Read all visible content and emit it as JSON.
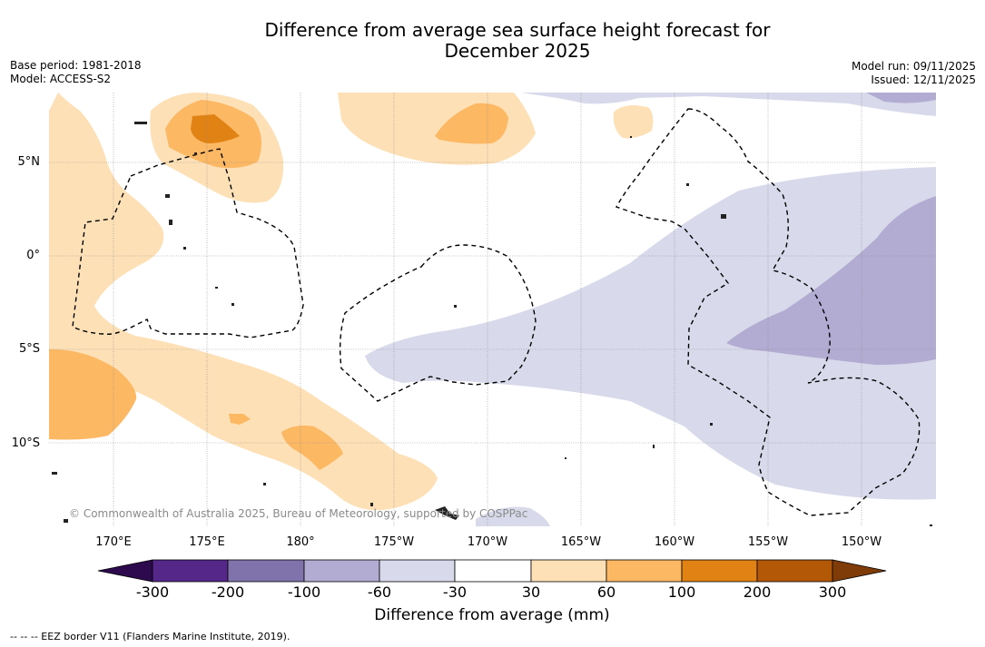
{
  "title": {
    "line1": "Difference from average sea surface height forecast for",
    "line2": "December 2025"
  },
  "metadata": {
    "base_period": "Base period: 1981-2018",
    "model": "Model: ACCESS-S2",
    "model_run": "Model run: 09/11/2025",
    "issued": "Issued: 12/11/2025"
  },
  "map": {
    "credit": "© Commonwealth of Australia 2025, Bureau of Meteorology, supported by COSPPac",
    "lat_labels": [
      "5°N",
      "0°",
      "5°S",
      "10°S"
    ],
    "lon_labels": [
      "170°E",
      "175°E",
      "180°",
      "175°W",
      "170°W",
      "165°W",
      "160°W",
      "155°W",
      "150°W"
    ]
  },
  "colorbar": {
    "title": "Difference from average (mm)",
    "ticks": [
      "-300",
      "-200",
      "-100",
      "-60",
      "-30",
      "30",
      "60",
      "100",
      "200",
      "300"
    ],
    "colors": [
      "#2d0a4e",
      "#542788",
      "#8073ac",
      "#b2abd2",
      "#d8daeb",
      "#ffffff",
      "#fee0b6",
      "#fdb863",
      "#e08214",
      "#b35806",
      "#7f3b08"
    ]
  },
  "footnote": "--  --  -- EEZ border V11 (Flanders Marine Institute, 2019)."
}
